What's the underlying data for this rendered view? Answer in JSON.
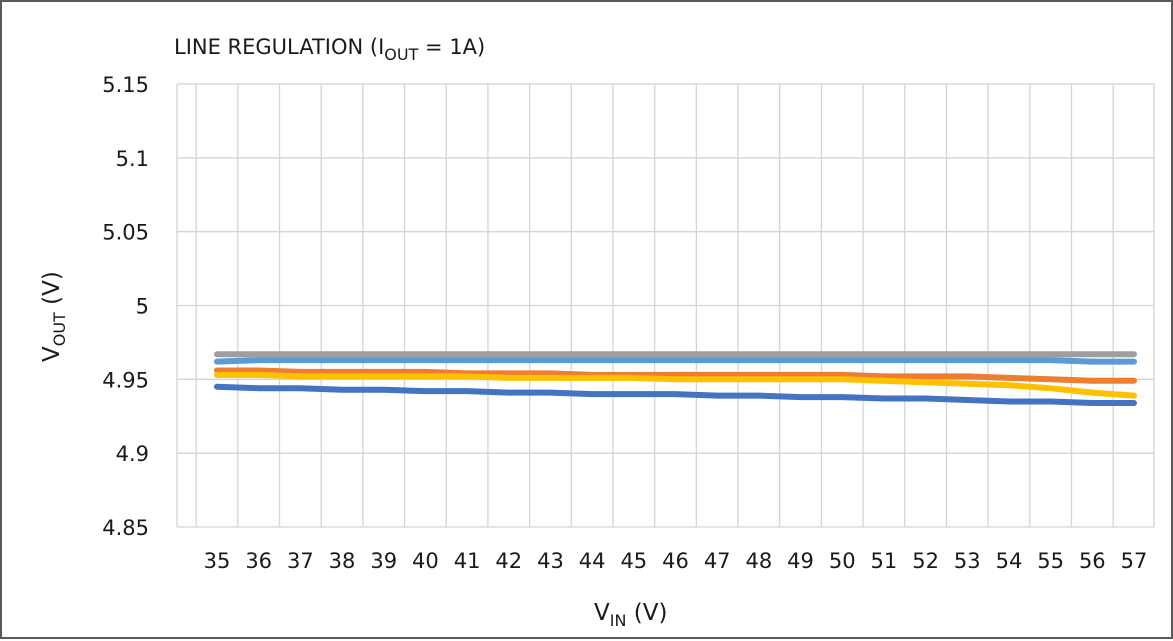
{
  "chart_data": {
    "type": "line",
    "title": {
      "main": "LINE REGULATION  (I",
      "sub": "OUT",
      "tail": " = 1A)"
    },
    "xlabel": {
      "main": "V",
      "sub": "IN",
      "tail": " (V)"
    },
    "ylabel": {
      "main": "V",
      "sub": "OUT",
      "tail": " (V)"
    },
    "x": [
      35,
      36,
      37,
      38,
      39,
      40,
      41,
      42,
      43,
      44,
      45,
      46,
      47,
      48,
      49,
      50,
      51,
      52,
      53,
      54,
      55,
      56,
      57
    ],
    "x_tick_labels": [
      "35",
      "36",
      "37",
      "38",
      "39",
      "40",
      "41",
      "42",
      "43",
      "44",
      "45",
      "46",
      "47",
      "48",
      "49",
      "50",
      "51",
      "52",
      "53",
      "54",
      "55",
      "56",
      "57"
    ],
    "ylim": [
      4.85,
      5.15
    ],
    "y_ticks": [
      4.85,
      4.9,
      4.95,
      5,
      5.05,
      5.1,
      5.15
    ],
    "y_tick_labels": [
      "4.85",
      "4.9",
      "4.95",
      "5",
      "5.05",
      "5.1",
      "5.15"
    ],
    "grid": true,
    "legend": "none",
    "series": [
      {
        "color": "#9e9e9e",
        "values": [
          4.967,
          4.967,
          4.967,
          4.967,
          4.967,
          4.967,
          4.967,
          4.967,
          4.967,
          4.967,
          4.967,
          4.967,
          4.967,
          4.967,
          4.967,
          4.967,
          4.967,
          4.967,
          4.967,
          4.967,
          4.967,
          4.967,
          4.967
        ]
      },
      {
        "color": "#5b9bd5",
        "values": [
          4.962,
          4.963,
          4.963,
          4.963,
          4.963,
          4.963,
          4.963,
          4.963,
          4.963,
          4.963,
          4.963,
          4.963,
          4.963,
          4.963,
          4.963,
          4.963,
          4.963,
          4.963,
          4.963,
          4.963,
          4.963,
          4.962,
          4.962
        ]
      },
      {
        "color": "#ed7d31",
        "values": [
          4.956,
          4.956,
          4.955,
          4.955,
          4.955,
          4.955,
          4.954,
          4.954,
          4.954,
          4.953,
          4.953,
          4.953,
          4.953,
          4.953,
          4.953,
          4.953,
          4.952,
          4.952,
          4.952,
          4.951,
          4.95,
          4.949,
          4.949
        ]
      },
      {
        "color": "#ffc000",
        "values": [
          4.953,
          4.953,
          4.952,
          4.952,
          4.952,
          4.952,
          4.952,
          4.951,
          4.951,
          4.951,
          4.951,
          4.95,
          4.95,
          4.95,
          4.95,
          4.95,
          4.949,
          4.948,
          4.947,
          4.946,
          4.944,
          4.941,
          4.939
        ]
      },
      {
        "color": "#4472c4",
        "values": [
          4.945,
          4.944,
          4.944,
          4.943,
          4.943,
          4.942,
          4.942,
          4.941,
          4.941,
          4.94,
          4.94,
          4.94,
          4.939,
          4.939,
          4.938,
          4.938,
          4.937,
          4.937,
          4.936,
          4.935,
          4.935,
          4.934,
          4.934
        ]
      }
    ]
  }
}
